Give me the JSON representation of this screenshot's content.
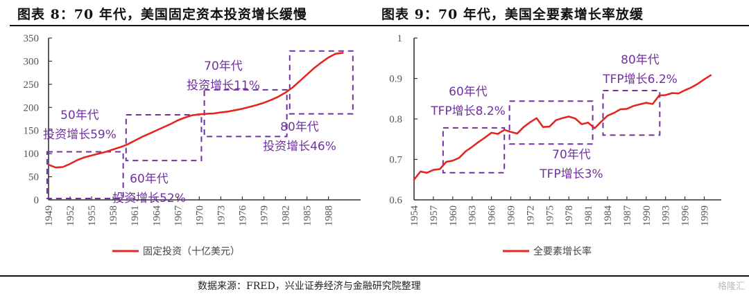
{
  "titles": {
    "left": "图表 8：70 年代，美国固定资本投资增长缓慢",
    "right": "图表 9：70 年代，美国全要素增长率放缓"
  },
  "footer": {
    "source": "数据来源：FRED，兴业证券经济与金融研究院整理",
    "watermark": "格隆汇"
  },
  "colors": {
    "line": "#e3261f",
    "annotation": "#7030a0",
    "axis": "#333333"
  },
  "chart_data": [
    {
      "type": "line",
      "title": "图表 8：70 年代，美国固定资本投资增长缓慢",
      "xlabel": "",
      "ylabel": "",
      "ylim": [
        0,
        350
      ],
      "xlim": [
        1949,
        1992
      ],
      "yticks": [
        0,
        50,
        100,
        150,
        200,
        250,
        300,
        350
      ],
      "xticks": [
        "1949",
        "1952",
        "1955",
        "1958",
        "1961",
        "1964",
        "1967",
        "1970",
        "1973",
        "1976",
        "1979",
        "1982",
        "1985",
        "1988"
      ],
      "legend": {
        "position": "bottom",
        "entries": [
          "固定投资（十亿美元）"
        ]
      },
      "grid": false,
      "series": [
        {
          "name": "固定投资（十亿美元）",
          "x": [
            1949,
            1950,
            1951,
            1952,
            1953,
            1954,
            1955,
            1956,
            1957,
            1958,
            1959,
            1960,
            1961,
            1962,
            1963,
            1964,
            1965,
            1966,
            1967,
            1968,
            1969,
            1970,
            1971,
            1972,
            1973,
            1974,
            1975,
            1976,
            1977,
            1978,
            1979,
            1980,
            1981,
            1982,
            1983,
            1984,
            1985,
            1986,
            1987,
            1988,
            1989,
            1990
          ],
          "values": [
            76,
            70,
            71,
            78,
            86,
            92,
            96,
            100,
            104,
            109,
            114,
            120,
            128,
            136,
            143,
            150,
            157,
            164,
            172,
            178,
            183,
            185,
            186,
            187,
            189,
            191,
            194,
            197,
            201,
            205,
            210,
            216,
            223,
            232,
            243,
            257,
            271,
            285,
            297,
            308,
            316,
            318
          ]
        }
      ],
      "annotations": [
        {
          "label1": "50年代",
          "label2": "投资增长59%"
        },
        {
          "label1": "60年代",
          "label2": "投资增长52%"
        },
        {
          "label1": "70年代",
          "label2": "投资增长11%"
        },
        {
          "label1": "80年代",
          "label2": "投资增长46%"
        }
      ],
      "decade_boxes": [
        {
          "decade": "50年代",
          "x": [
            1948.8,
            1959.4
          ],
          "y": [
            3,
            104
          ]
        },
        {
          "decade": "60年代",
          "x": [
            1959.8,
            1970.3
          ],
          "y": [
            85,
            184
          ]
        },
        {
          "decade": "70年代",
          "x": [
            1970.7,
            1982.2
          ],
          "y": [
            137,
            238
          ]
        },
        {
          "decade": "80年代",
          "x": [
            1982.6,
            1991.4
          ],
          "y": [
            186,
            322
          ]
        }
      ]
    },
    {
      "type": "line",
      "title": "图表 9：70 年代，美国全要素增长率放缓",
      "xlabel": "",
      "ylabel": "",
      "ylim": [
        0.6,
        1.0
      ],
      "xlim": [
        1954,
        2001
      ],
      "yticks": [
        0.6,
        0.7,
        0.8,
        0.9,
        1
      ],
      "ytick_labels": [
        "0.6",
        "0.7",
        "0.8",
        "0.9",
        "1"
      ],
      "xticks": [
        "1954",
        "1957",
        "1960",
        "1963",
        "1966",
        "1969",
        "1972",
        "1975",
        "1978",
        "1981",
        "1984",
        "1987",
        "1990",
        "1993",
        "1996",
        "1999"
      ],
      "legend": {
        "position": "bottom",
        "entries": [
          "全要素增长率"
        ]
      },
      "grid": false,
      "series": [
        {
          "name": "全要素增长率",
          "x": [
            1954,
            1955,
            1956,
            1957,
            1958,
            1959,
            1960,
            1961,
            1962,
            1963,
            1964,
            1965,
            1966,
            1967,
            1968,
            1969,
            1970,
            1971,
            1972,
            1973,
            1974,
            1975,
            1976,
            1977,
            1978,
            1979,
            1980,
            1981,
            1982,
            1983,
            1984,
            1985,
            1986,
            1987,
            1988,
            1989,
            1990,
            1991,
            1992,
            1993,
            1994,
            1995,
            1996,
            1997,
            1998,
            1999,
            2000
          ],
          "values": [
            0.65,
            0.67,
            0.667,
            0.674,
            0.676,
            0.694,
            0.697,
            0.704,
            0.72,
            0.731,
            0.743,
            0.754,
            0.766,
            0.763,
            0.773,
            0.768,
            0.764,
            0.78,
            0.792,
            0.802,
            0.78,
            0.781,
            0.797,
            0.802,
            0.806,
            0.801,
            0.787,
            0.791,
            0.777,
            0.793,
            0.808,
            0.815,
            0.824,
            0.825,
            0.832,
            0.836,
            0.84,
            0.837,
            0.858,
            0.859,
            0.864,
            0.863,
            0.871,
            0.878,
            0.887,
            0.898,
            0.908
          ]
        }
      ],
      "annotations": [
        {
          "label1": "60年代",
          "label2": "TFP增长8.2%"
        },
        {
          "label1": "70年代",
          "label2": "TFP增长3%"
        },
        {
          "label1": "80年代",
          "label2": "TFP增长6.2%"
        }
      ],
      "decade_boxes": [
        {
          "decade": "60年代",
          "x": [
            1958.5,
            1968.0
          ],
          "y": [
            0.667,
            0.778
          ]
        },
        {
          "decade": "70年代",
          "x": [
            1968.8,
            1981.7
          ],
          "y": [
            0.738,
            0.844
          ]
        },
        {
          "decade": "80年代",
          "x": [
            1983.3,
            1992.1
          ],
          "y": [
            0.76,
            0.87
          ]
        }
      ]
    }
  ]
}
